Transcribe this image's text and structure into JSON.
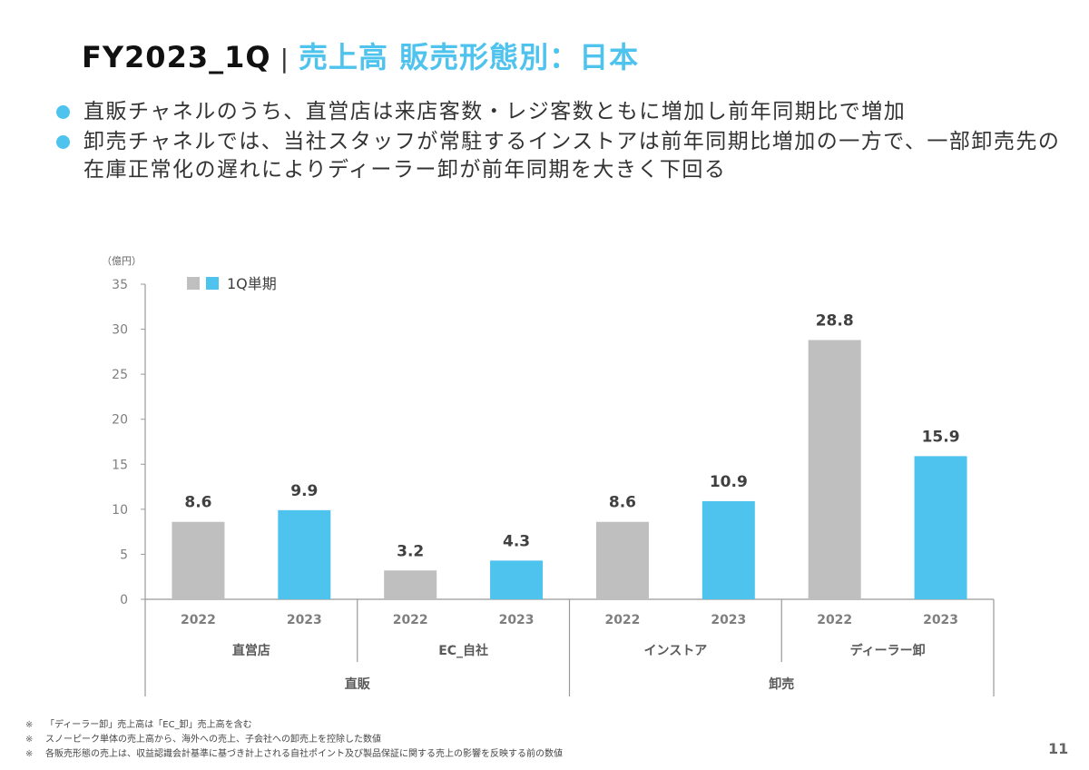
{
  "header": {
    "prefix": "FY2023_1Q",
    "separator": "|",
    "title": "売上高 販売形態別：日本"
  },
  "bullets": [
    {
      "text": "直販チャネルのうち、直営店は来店客数・レジ客数ともに増加し前年同期比で増加"
    },
    {
      "text": "卸売チャネルでは、当社スタッフが常駐するインストアは前年同期比増加の一方で、一部卸売先の在庫正常化の遅れによりディーラー卸が前年同期を大きく下回る"
    }
  ],
  "colors": {
    "accent": "#4ec3ee",
    "bar_2022": "#bfbfbf",
    "bar_2023": "#4ec3ee",
    "axis": "#999999",
    "tick_text": "#7f7f7f",
    "value_text": "#404040"
  },
  "chart_data": {
    "type": "bar",
    "title": "",
    "ylabel": "（億円）",
    "xlabel": "",
    "ylim": [
      0,
      35
    ],
    "yticks": [
      0,
      5,
      10,
      15,
      20,
      25,
      30,
      35
    ],
    "grid": false,
    "legend": {
      "placement": "top-left",
      "label": "1Q単期",
      "swatches": [
        "2022",
        "2023"
      ]
    },
    "groups": [
      {
        "name": "直販",
        "subgroups": [
          "直営店",
          "EC_自社"
        ]
      },
      {
        "name": "卸売",
        "subgroups": [
          "インストア",
          "ディーラー卸"
        ]
      }
    ],
    "categories": [
      "直営店",
      "EC_自社",
      "インストア",
      "ディーラー卸"
    ],
    "series": [
      {
        "name": "2022",
        "values": [
          8.6,
          3.2,
          8.6,
          28.8
        ]
      },
      {
        "name": "2023",
        "values": [
          9.9,
          4.3,
          10.9,
          15.9
        ]
      }
    ]
  },
  "footnotes": [
    {
      "mark": "※",
      "text": "「ディーラー卸」売上高は「EC_卸」売上高を含む"
    },
    {
      "mark": "※",
      "text": "スノーピーク単体の売上高から、海外への売上、子会社への卸売上を控除した数値"
    },
    {
      "mark": "※",
      "text": "各販売形態の売上は、収益認識会計基準に基づき計上される自社ポイント及び製品保証に関する売上の影響を反映する前の数値"
    }
  ],
  "page_number": "11"
}
